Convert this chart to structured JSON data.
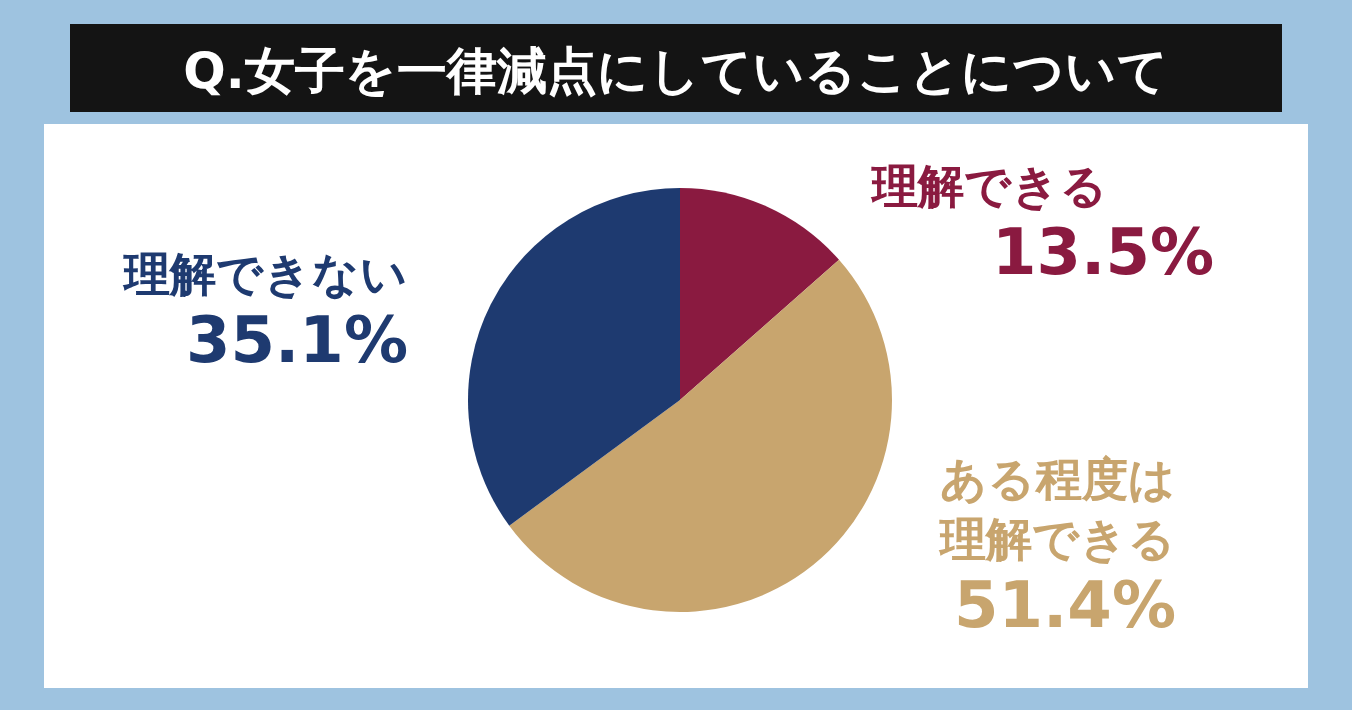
{
  "chart_data": {
    "type": "pie",
    "title": "Q.女子を一律減点にしていることについて",
    "categories": [
      "理解できる",
      "ある程度は理解できる",
      "理解できない"
    ],
    "values": [
      13.5,
      51.4,
      35.1
    ],
    "value_labels": [
      "13.5%",
      "51.4%",
      "35.1%"
    ],
    "colors": [
      "#8a1a40",
      "#c8a56e",
      "#1e3a70"
    ]
  }
}
